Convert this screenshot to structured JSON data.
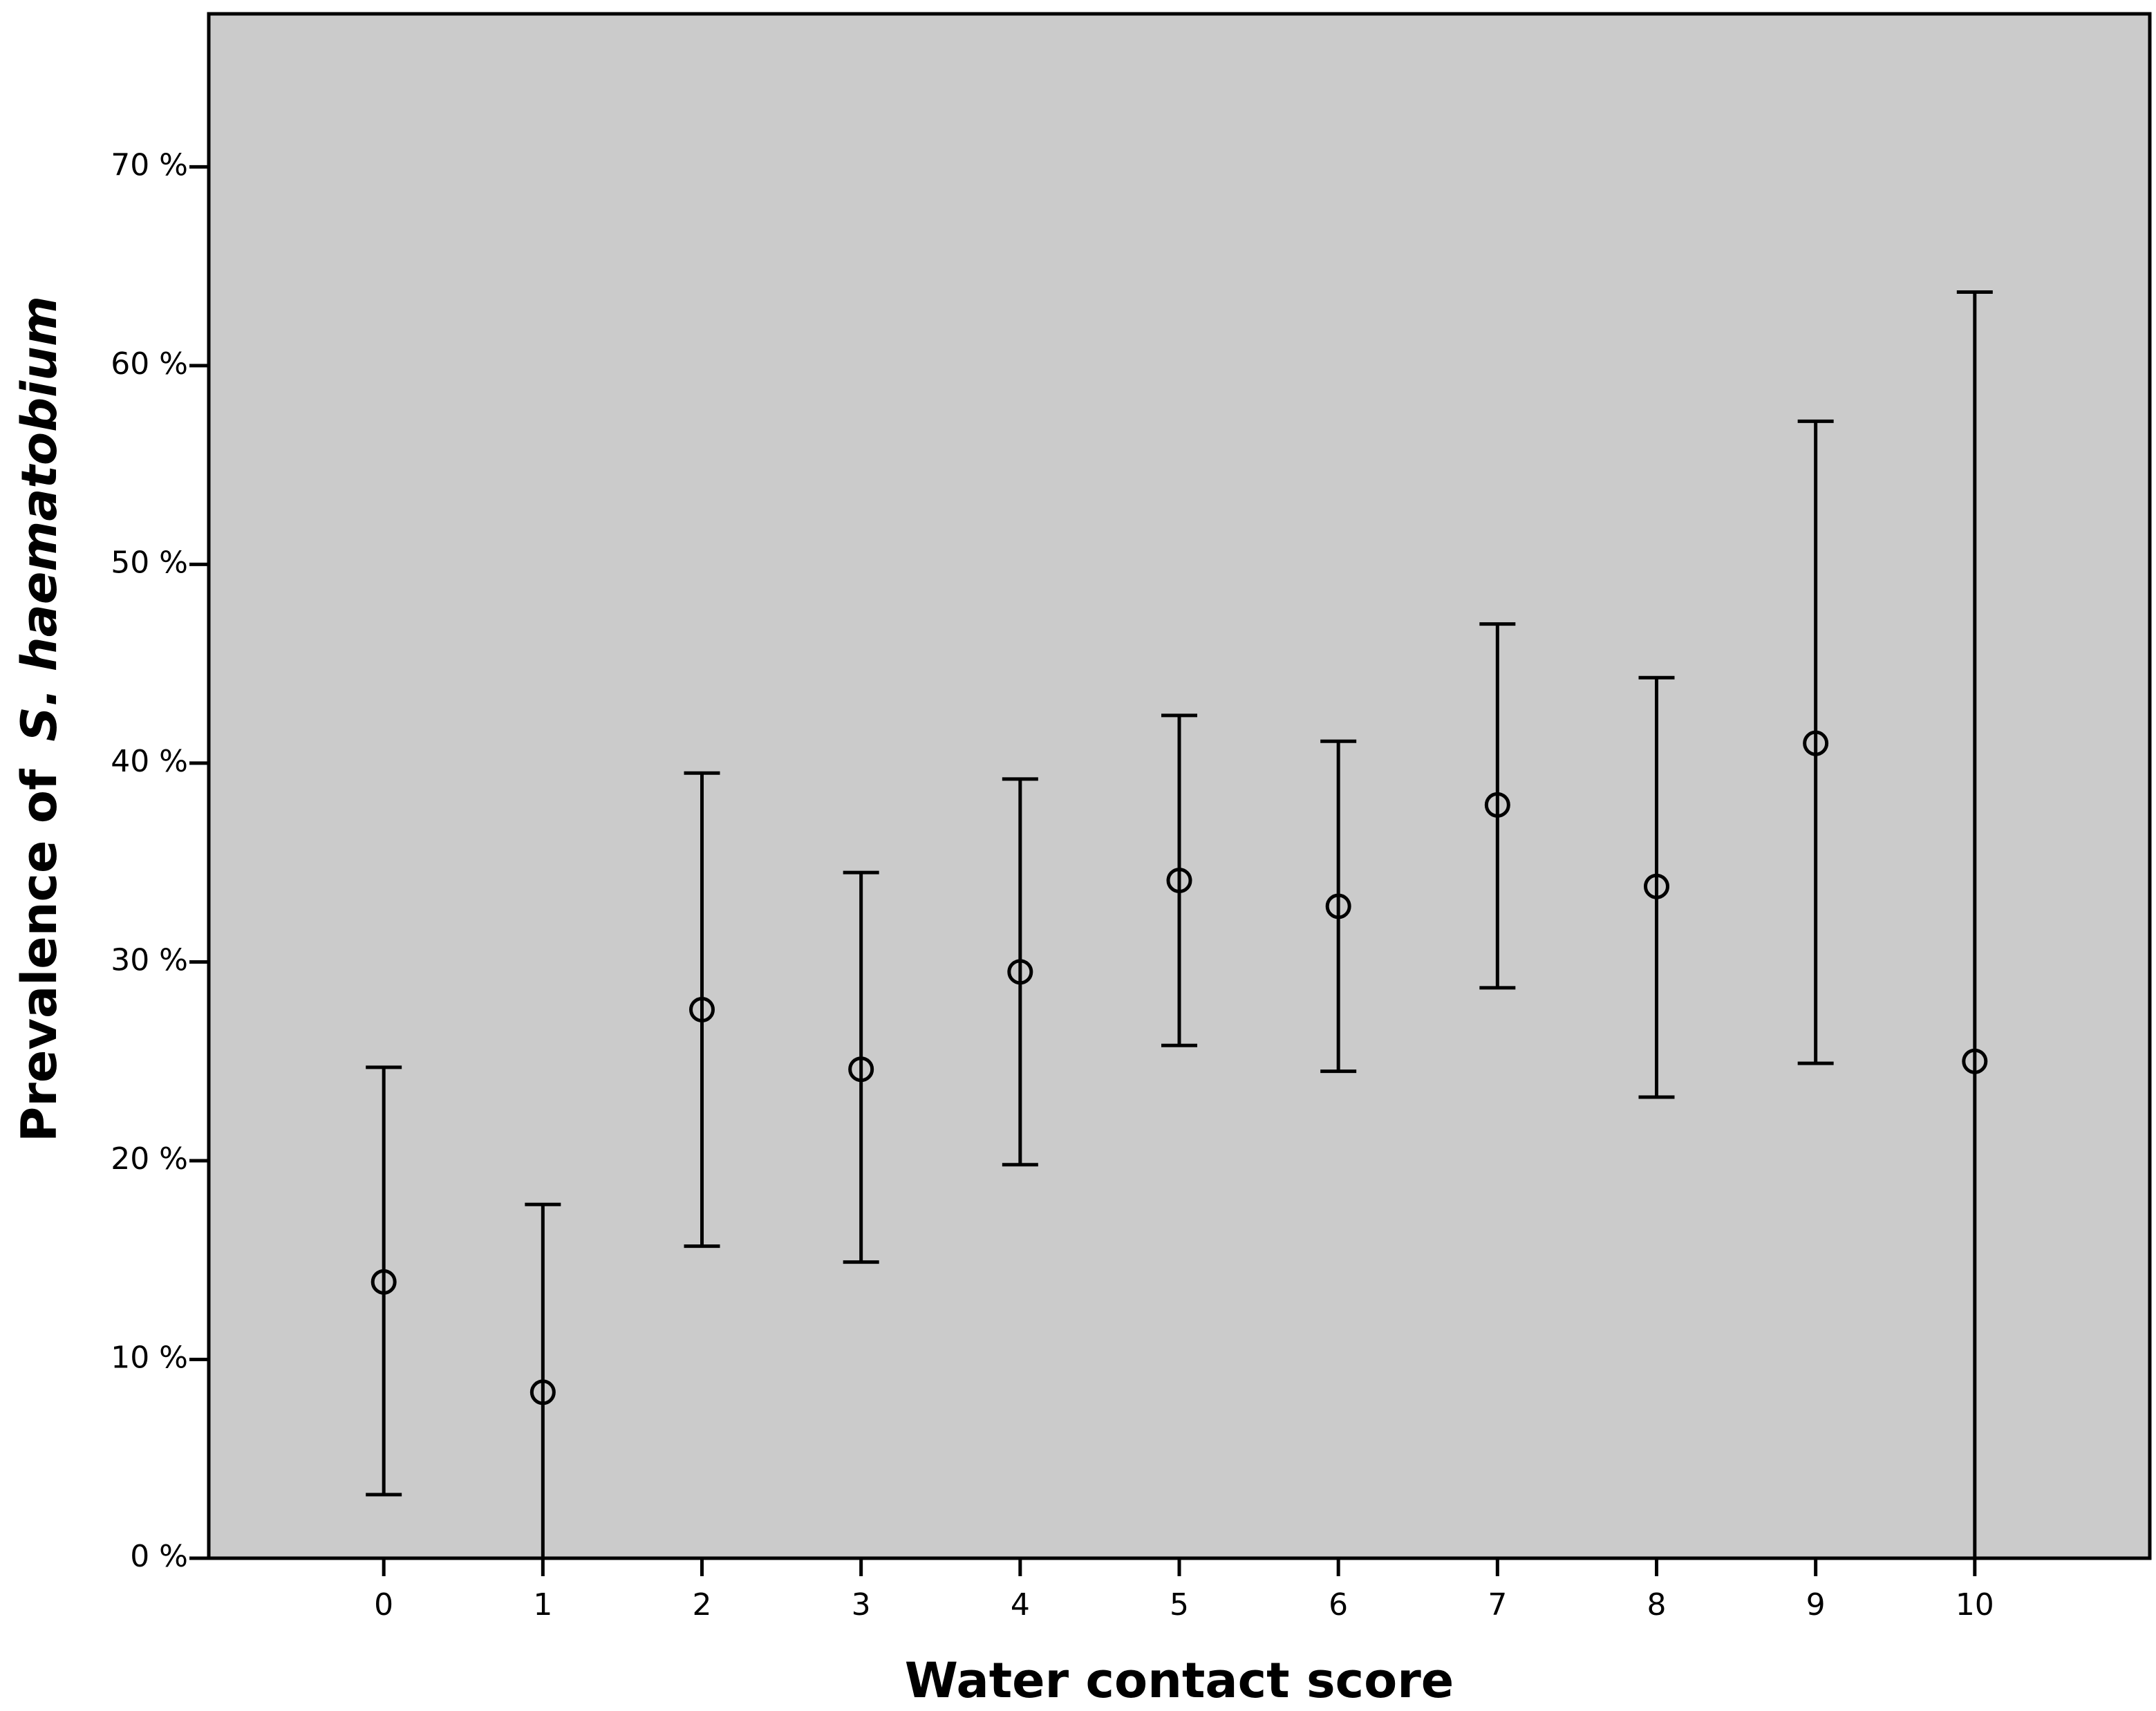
{
  "chart_data": {
    "type": "errorbar",
    "xlabel": "Water contact score",
    "ylabel": {
      "text": "Prevalence of",
      "italic": "S. haematobium"
    },
    "xlim": [
      -1.1,
      11.1
    ],
    "xticks": [
      0,
      1,
      2,
      3,
      4,
      5,
      6,
      7,
      8,
      9,
      10
    ],
    "ylim": [
      0,
      77.7
    ],
    "yticks": [
      {
        "value": 0,
        "label": "0 %"
      },
      {
        "value": 10,
        "label": "10 %"
      },
      {
        "value": 20,
        "label": "20 %"
      },
      {
        "value": 30,
        "label": "30 %"
      },
      {
        "value": 40,
        "label": "40 %"
      },
      {
        "value": 50,
        "label": "50 %"
      },
      {
        "value": 60,
        "label": "60 %"
      },
      {
        "value": 70,
        "label": "70 %"
      }
    ],
    "background": "#cbcbcb",
    "color": "#000000",
    "x": [
      0,
      1,
      2,
      3,
      4,
      5,
      6,
      7,
      8,
      9,
      10
    ],
    "values": [
      13.9,
      8.35,
      27.6,
      24.6,
      29.5,
      34.1,
      32.8,
      37.9,
      33.8,
      41.0,
      25.0
    ],
    "lower": [
      3.2,
      0,
      15.7,
      14.9,
      19.8,
      25.8,
      24.5,
      28.7,
      23.2,
      24.9,
      0
    ],
    "upper": [
      24.7,
      17.8,
      39.5,
      34.5,
      39.2,
      42.4,
      41.1,
      47.0,
      44.3,
      57.2,
      63.7
    ]
  }
}
